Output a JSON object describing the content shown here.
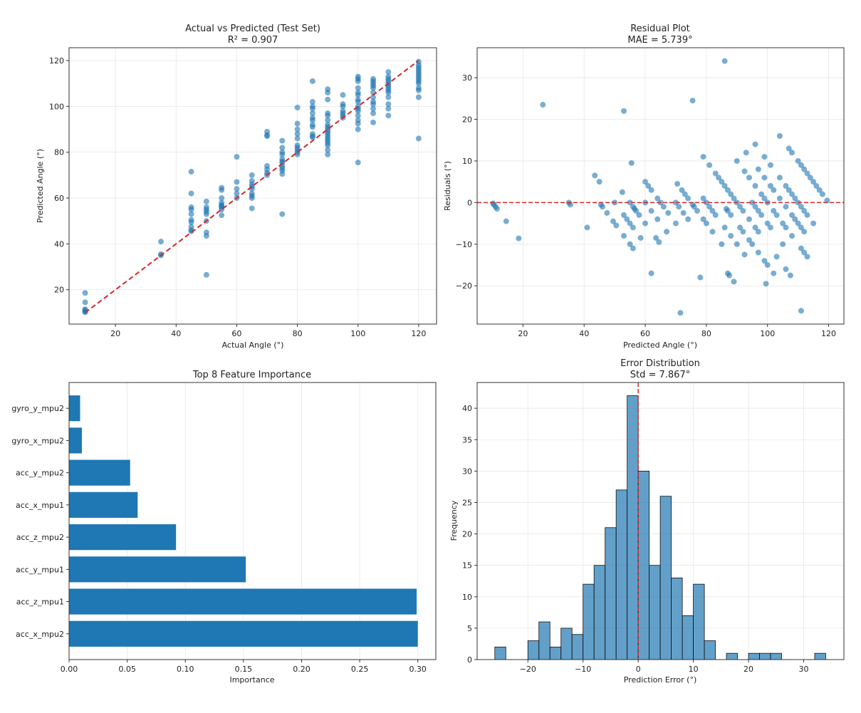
{
  "chart_data": [
    {
      "type": "scatter",
      "title": "Actual vs Predicted (Test Set)",
      "subtitle": "R² = 0.907",
      "xlabel": "Actual Angle (°)",
      "ylabel": "Predicted Angle (°)",
      "xlim": [
        4.7,
        125.9
      ],
      "ylim": [
        5,
        125.6
      ],
      "xticks": [
        20,
        40,
        60,
        80,
        100,
        120
      ],
      "yticks": [
        20,
        40,
        60,
        80,
        100,
        120
      ],
      "grid": true,
      "reference_line": {
        "from": [
          10,
          10
        ],
        "to": [
          120,
          120
        ],
        "style": "dashed",
        "color": "#d62728"
      },
      "point_color": "#1f77b4",
      "groups": [
        {
          "actual": 10,
          "predicted": [
            18.6,
            14.5,
            11.5,
            11,
            10.5,
            10.2
          ]
        },
        {
          "actual": 35,
          "predicted": [
            41,
            35.5,
            35
          ]
        },
        {
          "actual": 45,
          "predicted": [
            71.5,
            62,
            56,
            55,
            53,
            50.5,
            49.5,
            45.5,
            46,
            47.5
          ]
        },
        {
          "actual": 50,
          "predicted": [
            58.5,
            56,
            55,
            54,
            53,
            50,
            45,
            43.5,
            26.5
          ]
        },
        {
          "actual": 55,
          "predicted": [
            64.5,
            63.5,
            60,
            58,
            57,
            56.5,
            56,
            55,
            52.5
          ]
        },
        {
          "actual": 60,
          "predicted": [
            78,
            67,
            64,
            62,
            60
          ]
        },
        {
          "actual": 65,
          "predicted": [
            70,
            67.5,
            66,
            65,
            64,
            62,
            61,
            60,
            55.5
          ]
        },
        {
          "actual": 70,
          "predicted": [
            89,
            87.5,
            87,
            74,
            72.5,
            71,
            70
          ]
        },
        {
          "actual": 75,
          "predicted": [
            85,
            82,
            80,
            79,
            77,
            76,
            75.5,
            74,
            73,
            72,
            70.5,
            53
          ]
        },
        {
          "actual": 80,
          "predicted": [
            99.5,
            92.5,
            90,
            88,
            86,
            83,
            82,
            81,
            80,
            79
          ]
        },
        {
          "actual": 85,
          "predicted": [
            111,
            102,
            100,
            99,
            97,
            95,
            94,
            92,
            91,
            88,
            87,
            86.5
          ]
        },
        {
          "actual": 90,
          "predicted": [
            107.5,
            106,
            103,
            97,
            96,
            94,
            92,
            91,
            90,
            89,
            88,
            87,
            86,
            85,
            84,
            83,
            81,
            79
          ]
        },
        {
          "actual": 95,
          "predicted": [
            105,
            101,
            100,
            98,
            97,
            96,
            95
          ]
        },
        {
          "actual": 100,
          "predicted": [
            113,
            112,
            111,
            108,
            106,
            105,
            103,
            102,
            100,
            99,
            98,
            96,
            94,
            92.5,
            90,
            75.5
          ]
        },
        {
          "actual": 105,
          "predicted": [
            112,
            111,
            110,
            109,
            108,
            106,
            104,
            102,
            101,
            99,
            97,
            93
          ]
        },
        {
          "actual": 110,
          "predicted": [
            115,
            113,
            112,
            111,
            110,
            109,
            108,
            107,
            106,
            104,
            101,
            99,
            96
          ]
        },
        {
          "actual": 120,
          "predicted": [
            119.5,
            118,
            117,
            116,
            115,
            114,
            113,
            112,
            111,
            110,
            108,
            107,
            104,
            86
          ]
        }
      ]
    },
    {
      "type": "scatter",
      "title": "Residual Plot",
      "subtitle": "MAE = 5.739°",
      "xlabel": "Predicted Angle (°)",
      "ylabel": "Residuals (°)",
      "residual_definition": "actual - predicted (uses points of chart 1)",
      "xlim": [
        5,
        125
      ],
      "ylim": [
        -29.2,
        37.2
      ],
      "xticks": [
        20,
        40,
        60,
        80,
        100,
        120
      ],
      "yticks": [
        -20,
        -10,
        0,
        10,
        20,
        30
      ],
      "grid": true,
      "reference_line": {
        "y": 0,
        "style": "dashed",
        "color": "#d62728"
      }
    },
    {
      "type": "bar",
      "orientation": "horizontal",
      "title": "Top 8 Feature Importance",
      "xlabel": "Importance",
      "ylabel": "",
      "xlim": [
        0,
        0.3155
      ],
      "xticks": [
        "0.00",
        "0.05",
        "0.10",
        "0.15",
        "0.20",
        "0.25",
        "0.30"
      ],
      "grid": true,
      "bar_color": "#1f77b4",
      "categories": [
        "acc_x_mpu2",
        "acc_z_mpu1",
        "acc_y_mpu1",
        "acc_z_mpu2",
        "acc_x_mpu1",
        "acc_y_mpu2",
        "gyro_x_mpu2",
        "gyro_y_mpu2"
      ],
      "values": [
        0.3,
        0.299,
        0.152,
        0.092,
        0.059,
        0.0525,
        0.011,
        0.0095
      ]
    },
    {
      "type": "bar",
      "subtype": "histogram",
      "title": "Error Distribution",
      "subtitle": "Std = 7.867°",
      "xlabel": "Prediction Error (°)",
      "ylabel": "Frequency",
      "xlim": [
        -29.2,
        37.3
      ],
      "ylim": [
        0,
        44.1
      ],
      "xticks": [
        -20,
        -10,
        0,
        10,
        20,
        30
      ],
      "yticks": [
        0,
        5,
        10,
        15,
        20,
        25,
        30,
        35,
        40
      ],
      "grid": true,
      "bar_color": "#1f77b4",
      "bin_start": -26,
      "bin_width": 2,
      "counts": [
        2,
        0,
        0,
        3,
        6,
        2,
        5,
        4,
        12,
        15,
        21,
        27,
        42,
        30,
        15,
        26,
        13,
        7,
        12,
        3,
        0,
        1,
        0,
        1,
        1,
        1,
        0,
        0,
        0,
        1
      ],
      "reference_line": {
        "x": 0,
        "style": "dashed",
        "color": "#d62728"
      }
    }
  ]
}
